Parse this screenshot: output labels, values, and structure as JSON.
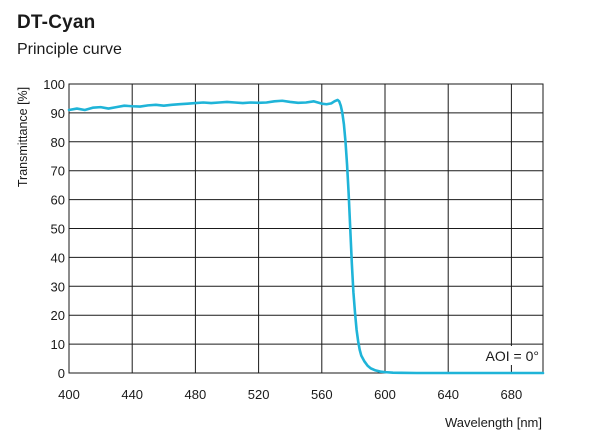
{
  "chart_data": {
    "type": "line",
    "title": "DT-Cyan",
    "subtitle": "Principle curve",
    "xlabel": "Wavelength [nm]",
    "ylabel": "Transmittance [%]",
    "xlim": [
      400,
      700
    ],
    "ylim": [
      0,
      100
    ],
    "xticks": [
      400,
      440,
      480,
      520,
      560,
      600,
      640,
      680
    ],
    "yticks": [
      0,
      10,
      20,
      30,
      40,
      50,
      60,
      70,
      80,
      90,
      100
    ],
    "grid": true,
    "annotation": "AOI = 0°",
    "line_color": "#1fb4d8",
    "series": [
      {
        "x": [
          400,
          405,
          410,
          415,
          420,
          425,
          430,
          435,
          440,
          445,
          450,
          455,
          460,
          465,
          470,
          475,
          480,
          485,
          490,
          495,
          500,
          505,
          510,
          515,
          520,
          525,
          530,
          535,
          540,
          545,
          550,
          555,
          560,
          563,
          566,
          568,
          570,
          571,
          572,
          573,
          574,
          575,
          576,
          577,
          578,
          579,
          580,
          581,
          582,
          583,
          584,
          585,
          587,
          589,
          591,
          594,
          597,
          600,
          605,
          610,
          620,
          640,
          660,
          680,
          700
        ],
        "y": [
          91,
          91.5,
          91,
          91.8,
          92,
          91.5,
          92,
          92.5,
          92.3,
          92.2,
          92.6,
          92.8,
          92.5,
          92.8,
          93,
          93.2,
          93.4,
          93.6,
          93.4,
          93.6,
          93.8,
          93.6,
          93.4,
          93.6,
          93.5,
          93.6,
          94,
          94.2,
          93.8,
          93.5,
          93.6,
          94,
          93.2,
          93,
          93.3,
          94,
          94.5,
          94,
          92.5,
          90,
          86,
          80,
          72,
          62,
          50,
          38,
          28,
          21,
          15,
          11,
          8,
          6,
          4,
          2.5,
          1.6,
          0.9,
          0.5,
          0.3,
          0.1,
          0.05,
          0,
          0,
          0,
          0,
          0
        ]
      }
    ]
  }
}
